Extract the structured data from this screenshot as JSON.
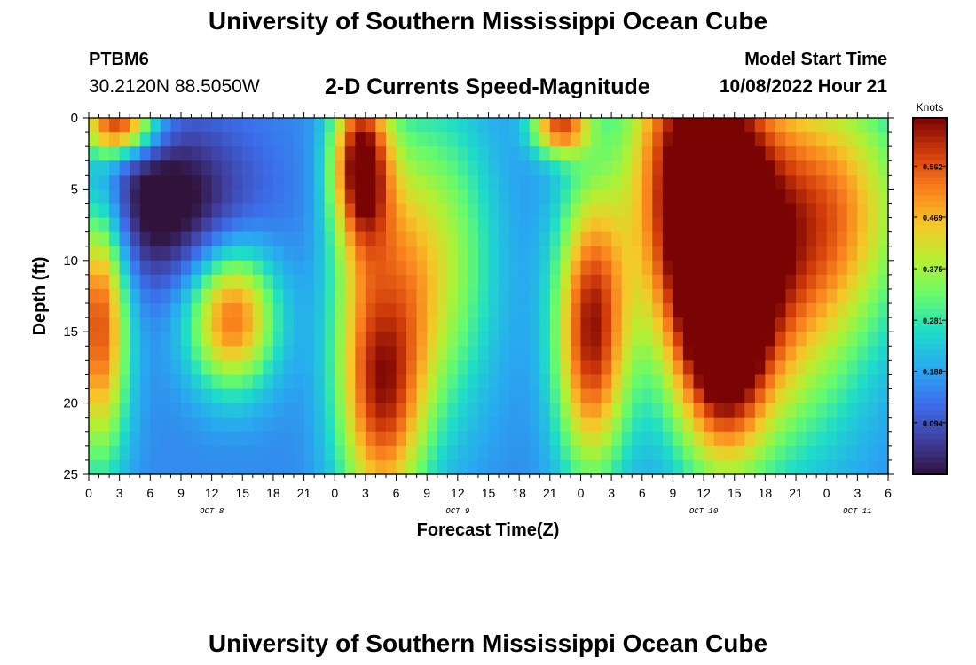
{
  "header": {
    "title": "University of Southern Mississippi Ocean Cube",
    "station": "PTBM6",
    "coordinates": "30.2120N  88.5050W",
    "chart_title": "2-D Currents Speed-Magnitude",
    "model_start_label": "Model Start Time",
    "model_start_value": "10/08/2022 Hour 21"
  },
  "footer": {
    "title": "University of Southern Mississippi Ocean Cube"
  },
  "colors": {
    "background": "#ffffff",
    "text": "#000000",
    "axis": "#000000"
  },
  "chart_data": {
    "type": "heatmap",
    "title": "2-D Currents Speed-Magnitude",
    "xlabel": "Forecast Time(Z)",
    "ylabel": "Depth (ft)",
    "x_unit": "hours from Oct 8 00Z",
    "xlim": [
      0,
      78
    ],
    "ylim": [
      0,
      25
    ],
    "y_inverted": true,
    "x_ticks": [
      0,
      3,
      6,
      9,
      12,
      15,
      18,
      21,
      24,
      27,
      30,
      33,
      36,
      39,
      42,
      45,
      48,
      51,
      54,
      57,
      60,
      63,
      66,
      69,
      72,
      75,
      78
    ],
    "x_tick_labels": [
      "0",
      "3",
      "6",
      "9",
      "12",
      "15",
      "18",
      "21",
      "0",
      "3",
      "6",
      "9",
      "12",
      "15",
      "18",
      "21",
      "0",
      "3",
      "6",
      "9",
      "12",
      "15",
      "18",
      "21",
      "0",
      "3",
      "6"
    ],
    "y_ticks": [
      0,
      5,
      10,
      15,
      20,
      25
    ],
    "y_tick_labels": [
      "0",
      "5",
      "10",
      "15",
      "20",
      "25"
    ],
    "date_labels": [
      {
        "label": "OCT 8",
        "x": 12
      },
      {
        "label": "OCT 9",
        "x": 36
      },
      {
        "label": "OCT 10",
        "x": 60
      },
      {
        "label": "OCT 11",
        "x": 75
      }
    ],
    "colorbar": {
      "label": "Knots",
      "min": 0.0,
      "max": 0.65,
      "ticks": [
        0.094,
        0.188,
        0.281,
        0.375,
        0.469,
        0.562
      ],
      "tick_labels": [
        "0.094",
        "0.188",
        "0.281",
        "0.375",
        "0.469",
        "0.562"
      ]
    },
    "grid": {
      "nx": 78,
      "ny": 25,
      "x_step_hours": 1,
      "y_step_ft": 1
    },
    "speed_field_components": [
      {
        "t": 3,
        "d": 0.5,
        "sx": 2.5,
        "sy": 1.5,
        "amp": 0.42
      },
      {
        "t": 1,
        "d": 14,
        "sx": 2.0,
        "sy": 7,
        "amp": 0.42
      },
      {
        "t": 14,
        "d": 14,
        "sx": 3.0,
        "sy": 3.5,
        "amp": 0.38
      },
      {
        "t": 26.5,
        "d": 3,
        "sx": 2.0,
        "sy": 4,
        "amp": 0.45
      },
      {
        "t": 28.5,
        "d": 17,
        "sx": 3.0,
        "sy": 8,
        "amp": 0.48
      },
      {
        "t": 34,
        "d": 10,
        "sx": 4.0,
        "sy": 8,
        "amp": 0.22
      },
      {
        "t": 49,
        "d": 15,
        "sx": 2.5,
        "sy": 7,
        "amp": 0.45
      },
      {
        "t": 46,
        "d": 0.5,
        "sx": 2.0,
        "sy": 1.5,
        "amp": 0.38
      },
      {
        "t": 59,
        "d": 4,
        "sx": 4.5,
        "sy": 9,
        "amp": 0.5
      },
      {
        "t": 62,
        "d": 14,
        "sx": 3.0,
        "sy": 7,
        "amp": 0.42
      },
      {
        "t": 67,
        "d": 10,
        "sx": 6.0,
        "sy": 9,
        "amp": 0.34
      },
      {
        "t": 74,
        "d": 6,
        "sx": 5.0,
        "sy": 6,
        "amp": 0.2
      },
      {
        "t": 7,
        "d": 6,
        "sx": 6.0,
        "sy": 4,
        "amp": -0.2
      },
      {
        "t": 29,
        "d": 13,
        "sx": 2.0,
        "sy": 4,
        "amp": -0.1
      }
    ]
  }
}
